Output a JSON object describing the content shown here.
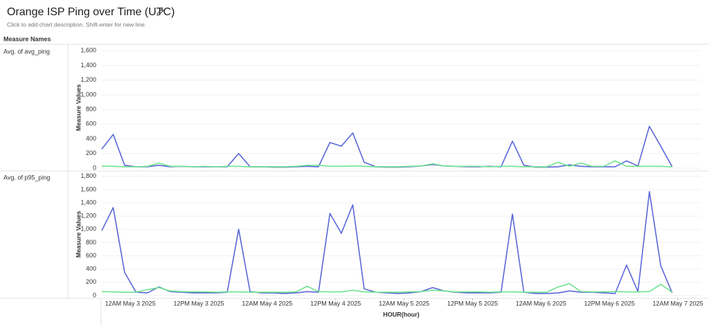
{
  "header": {
    "title": "Orange ISP Ping over Time (UTC)",
    "description": "Click to add chart description. Shift-enter for new line.",
    "measure_names_label": "Measure Names"
  },
  "chart_data": [
    {
      "type": "line",
      "row_label": "Avg. of avg_ping",
      "y_label": "Measure Values",
      "x": [
        "2025-05-02T19:00",
        "2025-05-02T21:00",
        "2025-05-02T23:00",
        "2025-05-03T01:00",
        "2025-05-03T03:00",
        "2025-05-03T05:00",
        "2025-05-03T07:00",
        "2025-05-03T09:00",
        "2025-05-03T11:00",
        "2025-05-03T13:00",
        "2025-05-03T15:00",
        "2025-05-03T17:00",
        "2025-05-03T19:00",
        "2025-05-03T21:00",
        "2025-05-03T23:00",
        "2025-05-04T01:00",
        "2025-05-04T03:00",
        "2025-05-04T05:00",
        "2025-05-04T07:00",
        "2025-05-04T09:00",
        "2025-05-04T11:00",
        "2025-05-04T13:00",
        "2025-05-04T15:00",
        "2025-05-04T17:00",
        "2025-05-04T19:00",
        "2025-05-04T21:00",
        "2025-05-04T23:00",
        "2025-05-05T01:00",
        "2025-05-05T03:00",
        "2025-05-05T05:00",
        "2025-05-05T07:00",
        "2025-05-05T09:00",
        "2025-05-05T11:00",
        "2025-05-05T13:00",
        "2025-05-05T15:00",
        "2025-05-05T17:00",
        "2025-05-05T19:00",
        "2025-05-05T21:00",
        "2025-05-05T23:00",
        "2025-05-06T01:00",
        "2025-05-06T03:00",
        "2025-05-06T05:00",
        "2025-05-06T07:00",
        "2025-05-06T09:00",
        "2025-05-06T11:00",
        "2025-05-06T13:00",
        "2025-05-06T15:00",
        "2025-05-06T17:00",
        "2025-05-06T19:00",
        "2025-05-06T21:00",
        "2025-05-06T23:00"
      ],
      "xlim": [
        "2025-05-02T19:00",
        "2025-05-07T04:00"
      ],
      "series": [
        {
          "color": "#5a67d8",
          "values": [
            260,
            460,
            40,
            20,
            20,
            40,
            20,
            25,
            20,
            20,
            20,
            20,
            200,
            20,
            20,
            15,
            15,
            20,
            25,
            20,
            350,
            300,
            480,
            80,
            20,
            15,
            15,
            20,
            30,
            50,
            30,
            25,
            20,
            20,
            25,
            20,
            370,
            40,
            15,
            15,
            20,
            45,
            25,
            20,
            20,
            20,
            100,
            30,
            570,
            300,
            20
          ]
        },
        {
          "color": "#6ee38f",
          "values": [
            30,
            25,
            20,
            20,
            25,
            70,
            25,
            25,
            20,
            25,
            20,
            25,
            25,
            20,
            20,
            20,
            20,
            25,
            40,
            40,
            25,
            25,
            30,
            25,
            20,
            20,
            20,
            25,
            30,
            60,
            30,
            25,
            25,
            25,
            20,
            25,
            25,
            20,
            20,
            20,
            80,
            25,
            70,
            25,
            25,
            100,
            25,
            25,
            25,
            25,
            20
          ]
        }
      ],
      "ylim": [
        0,
        1650
      ],
      "yticks": [
        0,
        200,
        400,
        600,
        800,
        {
          "value": 1000,
          "label": "1,000"
        },
        {
          "value": 1200,
          "label": "1,200"
        },
        {
          "value": 1400,
          "label": "1,400"
        },
        {
          "value": 1600,
          "label": "1,600"
        }
      ],
      "grid": true
    },
    {
      "type": "line",
      "row_label": "Avg. of p95_ping",
      "y_label": "Measure Values",
      "x_label": "HOUR(hour)",
      "x": [
        "2025-05-02T19:00",
        "2025-05-02T21:00",
        "2025-05-02T23:00",
        "2025-05-03T01:00",
        "2025-05-03T03:00",
        "2025-05-03T05:00",
        "2025-05-03T07:00",
        "2025-05-03T09:00",
        "2025-05-03T11:00",
        "2025-05-03T13:00",
        "2025-05-03T15:00",
        "2025-05-03T17:00",
        "2025-05-03T19:00",
        "2025-05-03T21:00",
        "2025-05-03T23:00",
        "2025-05-04T01:00",
        "2025-05-04T03:00",
        "2025-05-04T05:00",
        "2025-05-04T07:00",
        "2025-05-04T09:00",
        "2025-05-04T11:00",
        "2025-05-04T13:00",
        "2025-05-04T15:00",
        "2025-05-04T17:00",
        "2025-05-04T19:00",
        "2025-05-04T21:00",
        "2025-05-04T23:00",
        "2025-05-05T01:00",
        "2025-05-05T03:00",
        "2025-05-05T05:00",
        "2025-05-05T07:00",
        "2025-05-05T09:00",
        "2025-05-05T11:00",
        "2025-05-05T13:00",
        "2025-05-05T15:00",
        "2025-05-05T17:00",
        "2025-05-05T19:00",
        "2025-05-05T21:00",
        "2025-05-05T23:00",
        "2025-05-06T01:00",
        "2025-05-06T03:00",
        "2025-05-06T05:00",
        "2025-05-06T07:00",
        "2025-05-06T09:00",
        "2025-05-06T11:00",
        "2025-05-06T13:00",
        "2025-05-06T15:00",
        "2025-05-06T17:00",
        "2025-05-06T19:00",
        "2025-05-06T21:00",
        "2025-05-06T23:00"
      ],
      "xlim": [
        "2025-05-02T19:00",
        "2025-05-07T04:00"
      ],
      "series": [
        {
          "color": "#5a67d8",
          "values": [
            980,
            1330,
            350,
            50,
            40,
            130,
            60,
            50,
            40,
            40,
            40,
            50,
            1000,
            60,
            40,
            40,
            30,
            40,
            60,
            50,
            1240,
            940,
            1370,
            100,
            50,
            40,
            30,
            40,
            60,
            120,
            70,
            50,
            40,
            40,
            40,
            50,
            1230,
            50,
            30,
            30,
            40,
            70,
            50,
            50,
            40,
            30,
            460,
            60,
            1570,
            450,
            40
          ]
        },
        {
          "color": "#6ee38f",
          "values": [
            60,
            55,
            50,
            50,
            90,
            120,
            70,
            60,
            55,
            55,
            50,
            55,
            55,
            50,
            50,
            50,
            50,
            55,
            140,
            60,
            55,
            55,
            80,
            55,
            50,
            50,
            50,
            55,
            60,
            80,
            70,
            55,
            55,
            55,
            50,
            55,
            55,
            50,
            50,
            50,
            130,
            180,
            60,
            55,
            55,
            60,
            55,
            55,
            60,
            170,
            50
          ]
        }
      ],
      "ylim": [
        0,
        1850
      ],
      "yticks": [
        0,
        200,
        400,
        600,
        800,
        {
          "value": 1000,
          "label": "1,000"
        },
        {
          "value": 1200,
          "label": "1,200"
        },
        {
          "value": 1400,
          "label": "1,400"
        },
        {
          "value": 1600,
          "label": "1,600"
        },
        {
          "value": 1800,
          "label": "1,800"
        }
      ],
      "grid": true,
      "xticks": [
        {
          "value": "2025-05-03T00:00",
          "label": "12AM May 3 2025"
        },
        {
          "value": "2025-05-03T12:00",
          "label": "12PM May 3 2025"
        },
        {
          "value": "2025-05-04T00:00",
          "label": "12AM May 4 2025"
        },
        {
          "value": "2025-05-04T12:00",
          "label": "12PM May 4 2025"
        },
        {
          "value": "2025-05-05T00:00",
          "label": "12AM May 5 2025"
        },
        {
          "value": "2025-05-05T12:00",
          "label": "12PM May 5 2025"
        },
        {
          "value": "2025-05-06T00:00",
          "label": "12AM May 6 2025"
        },
        {
          "value": "2025-05-06T12:00",
          "label": "12PM May 6 2025"
        },
        {
          "value": "2025-05-07T00:00",
          "label": "12AM May 7 2025"
        }
      ]
    }
  ]
}
